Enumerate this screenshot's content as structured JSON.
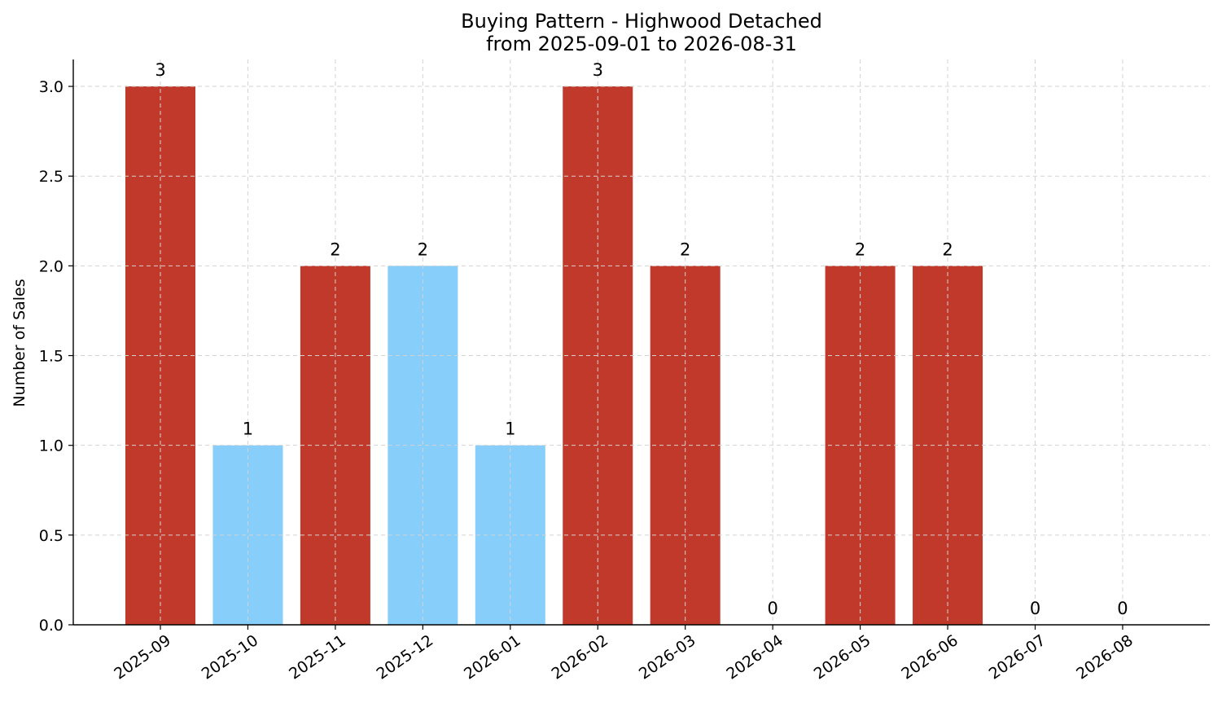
{
  "chart_data": {
    "type": "bar",
    "title": "Buying Pattern - Highwood Detached",
    "subtitle": "from 2025-09-01 to 2026-08-31",
    "xlabel": "",
    "ylabel": "Number of Sales",
    "categories": [
      "2025-09",
      "2025-10",
      "2025-11",
      "2025-12",
      "2026-01",
      "2026-02",
      "2026-03",
      "2026-04",
      "2026-05",
      "2026-06",
      "2026-07",
      "2026-08"
    ],
    "values": [
      3,
      1,
      2,
      2,
      1,
      3,
      2,
      0,
      2,
      2,
      0,
      0
    ],
    "bar_colors": [
      "#c0392b",
      "#87cefa",
      "#c0392b",
      "#87cefa",
      "#87cefa",
      "#c0392b",
      "#c0392b",
      "#c0392b",
      "#c0392b",
      "#c0392b",
      "#c0392b",
      "#c0392b"
    ],
    "ylim": [
      0,
      3.15
    ],
    "yticks": [
      "0.0",
      "0.5",
      "1.0",
      "1.5",
      "2.0",
      "2.5",
      "3.0"
    ],
    "grid": true,
    "legend": "none"
  }
}
